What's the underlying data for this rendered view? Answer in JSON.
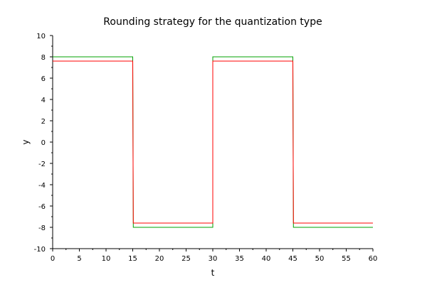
{
  "chart_data": {
    "type": "line",
    "title": "Rounding strategy for the quantization type",
    "xlabel": "t",
    "ylabel": "y",
    "xlim": [
      0,
      60
    ],
    "ylim": [
      -10,
      10
    ],
    "xticks": [
      0,
      5,
      10,
      15,
      20,
      25,
      30,
      35,
      40,
      45,
      50,
      55,
      60
    ],
    "yticks": [
      -10,
      -8,
      -6,
      -4,
      -2,
      0,
      2,
      4,
      6,
      8,
      10
    ],
    "grid": false,
    "legend": "none",
    "series": [
      {
        "color": "#00a000",
        "x": [
          0,
          15,
          15.1,
          30,
          30,
          45,
          45.1,
          60
        ],
        "y": [
          8,
          8,
          -8,
          -8,
          8,
          8,
          -8,
          -8
        ]
      },
      {
        "color": "#ff0000",
        "x": [
          0,
          15,
          15.1,
          30,
          30,
          45,
          45.1,
          60
        ],
        "y": [
          7.6,
          7.6,
          -7.6,
          -7.6,
          7.6,
          7.6,
          -7.6,
          -7.6
        ]
      }
    ]
  }
}
